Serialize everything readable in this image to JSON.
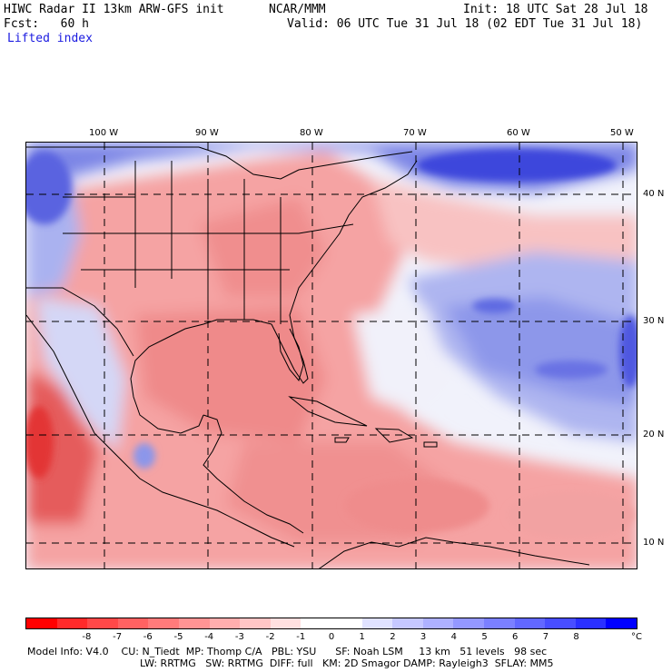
{
  "header": {
    "title": "HIWC Radar II 13km ARW-GFS init",
    "org": "NCAR/MMM",
    "init": "Init: 18 UTC Sat 28 Jul 18",
    "fcst": "Fcst:   60 h",
    "valid": "Valid: 06 UTC Tue 31 Jul 18 (02 EDT Tue 31 Jul 18)",
    "field": "Lifted index"
  },
  "map": {
    "lon_labels": [
      "100 W",
      "90 W",
      "80 W",
      "70 W",
      "60 W",
      "50 W"
    ],
    "lat_labels": [
      "40 N",
      "30 N",
      "20 N",
      "10 N"
    ],
    "colors": {
      "warm_dark": "#e84c4c",
      "warm": "#f59a9a",
      "warm_light": "#fbd0d0",
      "neutral": "#f4f4fa",
      "cool_light": "#c8ccf4",
      "cool": "#8c96ea",
      "cool_dark": "#3c46dc"
    }
  },
  "colorbar": {
    "colors": [
      "#ff0000",
      "#ff2a2a",
      "#ff4848",
      "#ff6262",
      "#ff7b7b",
      "#ff9494",
      "#ffaeae",
      "#ffc6c6",
      "#ffe0e0",
      "#ffffff",
      "#ffffff",
      "#e0e2ff",
      "#c6c8ff",
      "#aeb1ff",
      "#9498ff",
      "#7b80ff",
      "#6268ff",
      "#484eff",
      "#2a30ff",
      "#0000ff"
    ],
    "labels": [
      "-8",
      "-7",
      "-6",
      "-5",
      "-4",
      "-3",
      "-2",
      "-1",
      "0",
      "1",
      "2",
      "3",
      "4",
      "5",
      "6",
      "7",
      "8"
    ],
    "unit": "°C"
  },
  "model_info": {
    "line1": "Model Info: V4.0    CU: N_Tiedt  MP: Thomp C/A   PBL: YSU      SF: Noah LSM     13 km   51 levels   98 sec",
    "line2": "LW: RRTMG   SW: RRTMG  DIFF: full   KM: 2D Smagor DAMP: Rayleigh3  SFLAY: MM5"
  }
}
